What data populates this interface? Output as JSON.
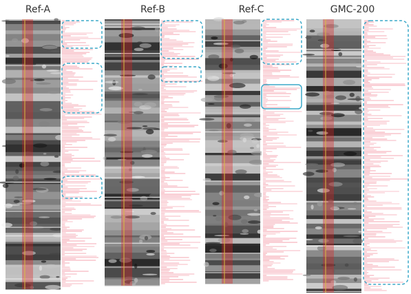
{
  "panels": [
    {
      "label": "Ref-A"
    },
    {
      "label": "Ref-B"
    },
    {
      "label": "Ref-C"
    },
    {
      "label": "GMC-200"
    }
  ]
}
